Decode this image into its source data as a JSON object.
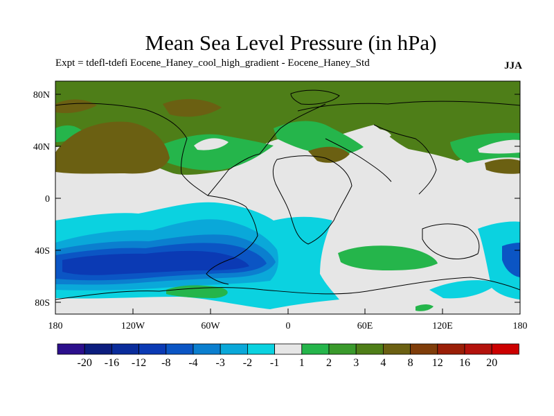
{
  "header": {
    "title": "Mean Sea Level Pressure (in hPa)",
    "subtitle": "Expt = tdefl-tdefi  Eocene_Haney_cool_high_gradient - Eocene_Haney_Std",
    "season": "JJA"
  },
  "map": {
    "lat_ticks": [
      "80N",
      "40N",
      "0",
      "40S",
      "80S"
    ],
    "lon_ticks": [
      "180",
      "120W",
      "60W",
      "0",
      "60E",
      "120E",
      "180"
    ]
  },
  "colorbar": {
    "labels": [
      "-20",
      "-16",
      "-12",
      "-8",
      "-4",
      "-3",
      "-2",
      "-1",
      "1",
      "2",
      "3",
      "4",
      "8",
      "12",
      "16",
      "20"
    ],
    "colors": [
      "#2c0f8c",
      "#0c1d7e",
      "#0a2c9b",
      "#0b3ab4",
      "#0b55c4",
      "#0b7fcf",
      "#0aa8d9",
      "#0bd2e0",
      "#e6e6e6",
      "#25b54b",
      "#3a9a2c",
      "#4e7e18",
      "#6b6012",
      "#7f3d0a",
      "#9a1e07",
      "#b3120c",
      "#cc0000"
    ]
  },
  "colors": {
    "land_outline": "#000000",
    "neutral": "#e6e6e6"
  }
}
